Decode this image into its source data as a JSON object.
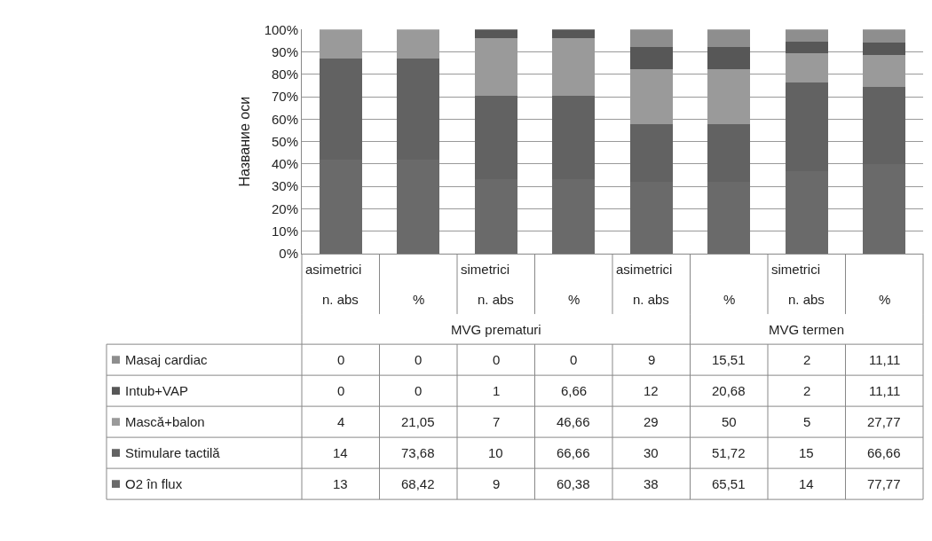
{
  "chart_data": [
    {
      "type": "bar",
      "stacked": true,
      "ylabel": "Название оси",
      "legend": "bottom left",
      "categories": [
        "n. abs",
        "%",
        "n. abs",
        "%",
        "n. abs",
        "%",
        "n. abs",
        "%"
      ],
      "annotations": [
        "asimetrici",
        "simetrici",
        "asimetrici",
        "simetrici",
        "MVG prematuri",
        "MVG termen"
      ],
      "ylim": [
        0,
        100
      ],
      "yticks": [
        {
          "value": 0,
          "label": "0%"
        },
        {
          "value": 10,
          "label": "10%"
        },
        {
          "value": 20,
          "label": "20%"
        },
        {
          "value": 30,
          "label": "30%"
        },
        {
          "value": 40,
          "label": "40%"
        },
        {
          "value": 50,
          "label": "50%"
        },
        {
          "value": 60,
          "label": "60%"
        },
        {
          "value": 70,
          "label": "70%"
        },
        {
          "value": 80,
          "label": "80%"
        },
        {
          "value": 90,
          "label": "90%"
        },
        {
          "value": 100,
          "label": "100%"
        }
      ],
      "grid": "y",
      "series": [
        {
          "name": "O2 în flux",
          "color": "#6a6a6a",
          "values": [
            41.9,
            41.9,
            33.3,
            33.4,
            32.2,
            32.2,
            36.8,
            40.0
          ]
        },
        {
          "name": "Stimulare tactilă",
          "color": "#626262",
          "values": [
            45.2,
            45.2,
            37.1,
            37.0,
            25.4,
            25.4,
            39.4,
            34.3
          ]
        },
        {
          "name": "Mască+balon",
          "color": "#9a9a9a",
          "values": [
            12.9,
            12.9,
            25.9,
            25.9,
            24.6,
            24.6,
            13.2,
            14.3
          ]
        },
        {
          "name": "Intub+VAP",
          "color": "#575757",
          "values": [
            0,
            0,
            3.7,
            3.7,
            10.2,
            10.2,
            5.3,
            5.7
          ]
        },
        {
          "name": "Masaj cardiac",
          "color": "#8e8e8e",
          "values": [
            0,
            0,
            0,
            0,
            7.6,
            7.6,
            5.3,
            5.7
          ]
        }
      ]
    },
    {
      "type": "other",
      "annotations": [
        "0",
        "0",
        "0",
        "0",
        "9",
        "15,51",
        "2",
        "11,11",
        "0",
        "0",
        "1",
        "6,66",
        "12",
        "20,68",
        "2",
        "11,11",
        "4",
        "21,05",
        "7",
        "46,66",
        "29",
        "50",
        "5",
        "27,77",
        "14",
        "73,68",
        "10",
        "66,66",
        "30",
        "51,72",
        "15",
        "66,66",
        "13",
        "68,42",
        "9",
        "60,38",
        "38",
        "65,51",
        "14",
        "77,77"
      ]
    }
  ]
}
